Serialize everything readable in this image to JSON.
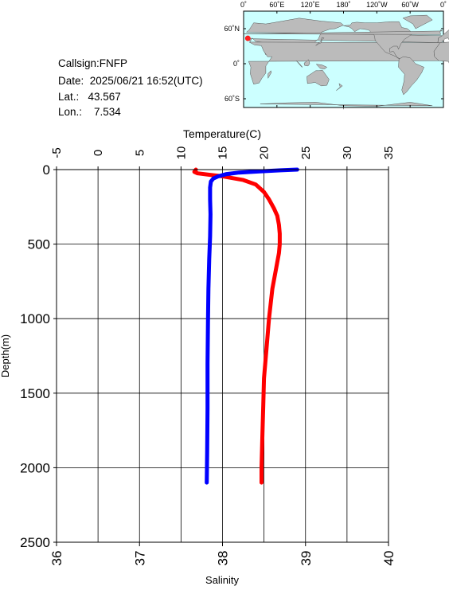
{
  "station": {
    "callsign_line": "Callsign:FNFP",
    "date_line": "Date:  2025/06/21 16:52(UTC)",
    "lat_line": "Lat.:   43.567",
    "lon_line": "Lon.:    7.534"
  },
  "map": {
    "top_ticks": [
      "0˚",
      "60˚E",
      "120˚E",
      "180˚",
      "120˚W",
      "60˚W",
      "0˚"
    ],
    "lat_ticks": [
      "60˚N",
      "0˚",
      "60˚S"
    ],
    "marker_lat": 43.567,
    "marker_lon": 7.534,
    "ocean_color": "#ccffff",
    "land_color": "#bbbbbb",
    "marker_color": "#ff2020"
  },
  "chart_data": {
    "type": "line",
    "title": "",
    "ylabel": "Depth(m)",
    "ylim": [
      0,
      2500
    ],
    "y_ticks": [
      0,
      500,
      1000,
      1500,
      2000,
      2500
    ],
    "y_reversed": true,
    "grid": true,
    "top_axis": {
      "label": "Temperature(C)",
      "range": [
        -5,
        35
      ],
      "ticks": [
        -5,
        0,
        5,
        10,
        15,
        20,
        25,
        30,
        35
      ]
    },
    "bottom_axis": {
      "label": "Salinity",
      "range": [
        36,
        40
      ],
      "ticks": [
        36,
        37,
        38,
        39,
        40
      ]
    },
    "series": [
      {
        "color": "#ff0000",
        "axis": "bottom",
        "points": [
          [
            37.68,
            0
          ],
          [
            37.66,
            15
          ],
          [
            37.7,
            25
          ],
          [
            37.85,
            35
          ],
          [
            38.0,
            45
          ],
          [
            38.1,
            55
          ],
          [
            38.25,
            70
          ],
          [
            38.4,
            100
          ],
          [
            38.5,
            150
          ],
          [
            38.56,
            200
          ],
          [
            38.62,
            260
          ],
          [
            38.66,
            310
          ],
          [
            38.68,
            370
          ],
          [
            38.69,
            430
          ],
          [
            38.69,
            500
          ],
          [
            38.68,
            560
          ],
          [
            38.65,
            650
          ],
          [
            38.6,
            800
          ],
          [
            38.56,
            1000
          ],
          [
            38.53,
            1200
          ],
          [
            38.5,
            1400
          ],
          [
            38.49,
            1600
          ],
          [
            38.48,
            1800
          ],
          [
            38.47,
            2000
          ],
          [
            38.47,
            2100
          ]
        ]
      },
      {
        "color": "#0000ff",
        "axis": "top",
        "points": [
          [
            24.0,
            0
          ],
          [
            22.0,
            5
          ],
          [
            19.5,
            12
          ],
          [
            17.0,
            20
          ],
          [
            15.5,
            30
          ],
          [
            14.5,
            45
          ],
          [
            13.9,
            60
          ],
          [
            13.6,
            80
          ],
          [
            13.5,
            120
          ],
          [
            13.5,
            200
          ],
          [
            13.55,
            300
          ],
          [
            13.5,
            450
          ],
          [
            13.4,
            600
          ],
          [
            13.3,
            800
          ],
          [
            13.25,
            1000
          ],
          [
            13.2,
            1300
          ],
          [
            13.2,
            1600
          ],
          [
            13.15,
            1900
          ],
          [
            13.1,
            2100
          ]
        ]
      }
    ]
  }
}
